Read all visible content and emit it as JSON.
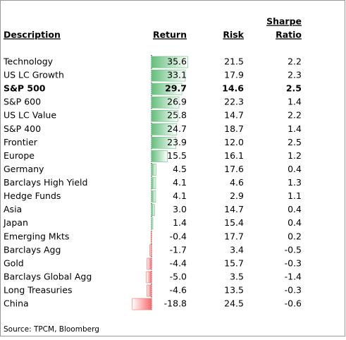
{
  "header": {
    "description": "Description",
    "return": "Return",
    "risk": "Risk",
    "sharpe_line1": "Sharpe",
    "sharpe_line2": "Ratio"
  },
  "table": {
    "rows": [
      {
        "description": "Technology",
        "return": 35.6,
        "risk": 21.5,
        "sharpe": 2.2
      },
      {
        "description": "US LC Growth",
        "return": 33.1,
        "risk": 17.9,
        "sharpe": 2.3
      },
      {
        "description": "S&P 500",
        "return": 29.7,
        "risk": 14.6,
        "sharpe": 2.5,
        "bold": true
      },
      {
        "description": "S&P 600",
        "return": 26.9,
        "risk": 22.3,
        "sharpe": 1.4
      },
      {
        "description": "US LC Value",
        "return": 25.8,
        "risk": 14.7,
        "sharpe": 2.2
      },
      {
        "description": "S&P 400",
        "return": 24.7,
        "risk": 18.7,
        "sharpe": 1.4
      },
      {
        "description": "Frontier",
        "return": 23.9,
        "risk": {
          "value": 12,
          "label": "12.0"
        },
        "sharpe": 2.5
      },
      {
        "description": "Europe",
        "return": 15.5,
        "risk": 16.1,
        "sharpe": 1.2
      },
      {
        "description": "Germany",
        "return": 4.5,
        "risk": 17.6,
        "sharpe": 0.4
      },
      {
        "description": "Barclays High Yield",
        "return": 4.1,
        "risk": 4.6,
        "sharpe": 1.3
      },
      {
        "description": "Hedge Funds",
        "return": 4.1,
        "risk": 2.9,
        "sharpe": 1.1
      },
      {
        "description": "Asia",
        "return": {
          "value": 3,
          "label": "3.0"
        },
        "risk": 14.7,
        "sharpe": 0.4
      },
      {
        "description": "Japan",
        "return": 1.4,
        "risk": 15.4,
        "sharpe": 0.4
      },
      {
        "description": "Emerging Mkts",
        "return": -0.4,
        "risk": 17.7,
        "sharpe": 0.2
      },
      {
        "description": "Barclays Agg",
        "return": -1.7,
        "risk": 3.4,
        "sharpe": -0.5
      },
      {
        "description": "Gold",
        "return": -4.4,
        "risk": 15.7,
        "sharpe": -0.3
      },
      {
        "description": "Barclays Global Agg",
        "return": {
          "value": -5,
          "label": "-5.0"
        },
        "risk": 3.5,
        "sharpe": -1.4
      },
      {
        "description": "Long Treasuries",
        "return": -4.6,
        "risk": 13.5,
        "sharpe": -0.3
      },
      {
        "description": "China",
        "return": -18.8,
        "risk": 24.5,
        "sharpe": -0.6
      }
    ]
  },
  "footer": {
    "source": "Source: TPCM, Bloomberg"
  }
}
